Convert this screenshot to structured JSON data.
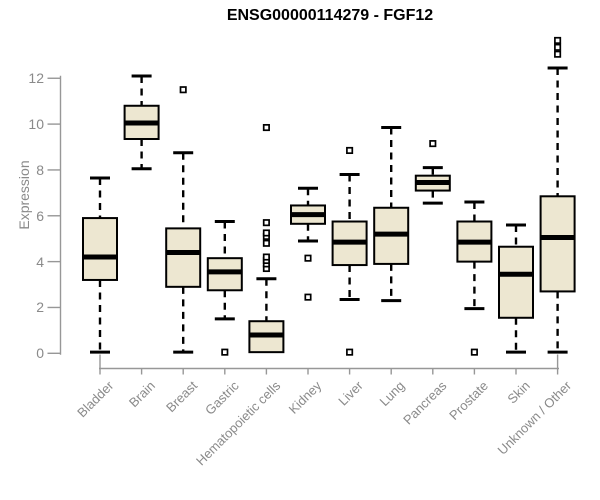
{
  "title": "ENSG00000114279 - FGF12",
  "chart_data": {
    "type": "boxplot",
    "title": "ENSG00000114279 - FGF12",
    "xlabel": "",
    "ylabel": "Expression",
    "ylim": [
      0,
      12
    ],
    "yticks": [
      0,
      2,
      4,
      6,
      8,
      10,
      12
    ],
    "grid": false,
    "legend": false,
    "categories": [
      "Bladder",
      "Brain",
      "Breast",
      "Gastric",
      "Hematopoietic cells",
      "Kidney",
      "Liver",
      "Lung",
      "Pancreas",
      "Prostate",
      "Skin",
      "Unknown / Other"
    ],
    "series": [
      {
        "name": "Bladder",
        "whisker_low": 0.05,
        "q1": 3.2,
        "median": 4.2,
        "q3": 5.9,
        "whisker_high": 7.65,
        "outliers": []
      },
      {
        "name": "Brain",
        "whisker_low": 8.05,
        "q1": 9.35,
        "median": 10.05,
        "q3": 10.8,
        "whisker_high": 12.1,
        "outliers": []
      },
      {
        "name": "Breast",
        "whisker_low": 0.05,
        "q1": 2.9,
        "median": 4.4,
        "q3": 5.45,
        "whisker_high": 8.75,
        "outliers": [
          11.5
        ]
      },
      {
        "name": "Gastric",
        "whisker_low": 1.5,
        "q1": 2.75,
        "median": 3.55,
        "q3": 4.15,
        "whisker_high": 5.75,
        "outliers": [
          0.05
        ]
      },
      {
        "name": "Hematopoietic cells",
        "whisker_low": 0.05,
        "q1": 0.05,
        "median": 0.8,
        "q3": 1.4,
        "whisker_high": 3.25,
        "outliers": [
          3.7,
          3.9,
          4.05,
          4.2,
          4.8,
          5.1,
          5.25,
          5.7,
          9.85
        ]
      },
      {
        "name": "Kidney",
        "whisker_low": 4.9,
        "q1": 5.65,
        "median": 6.05,
        "q3": 6.45,
        "whisker_high": 7.2,
        "outliers": [
          4.15,
          2.45
        ]
      },
      {
        "name": "Liver",
        "whisker_low": 2.35,
        "q1": 3.85,
        "median": 4.85,
        "q3": 5.75,
        "whisker_high": 7.8,
        "outliers": [
          8.85,
          0.05
        ]
      },
      {
        "name": "Lung",
        "whisker_low": 2.3,
        "q1": 3.9,
        "median": 5.2,
        "q3": 6.35,
        "whisker_high": 9.85,
        "outliers": []
      },
      {
        "name": "Pancreas",
        "whisker_low": 6.55,
        "q1": 7.1,
        "median": 7.45,
        "q3": 7.75,
        "whisker_high": 8.1,
        "outliers": [
          9.15
        ]
      },
      {
        "name": "Prostate",
        "whisker_low": 1.95,
        "q1": 4.0,
        "median": 4.85,
        "q3": 5.75,
        "whisker_high": 6.6,
        "outliers": [
          0.05
        ]
      },
      {
        "name": "Skin",
        "whisker_low": 0.05,
        "q1": 1.55,
        "median": 3.45,
        "q3": 4.65,
        "whisker_high": 5.6,
        "outliers": []
      },
      {
        "name": "Unknown / Other",
        "whisker_low": 0.05,
        "q1": 2.7,
        "median": 5.05,
        "q3": 6.85,
        "whisker_high": 12.45,
        "outliers": [
          13.05,
          13.35,
          13.65
        ]
      }
    ]
  },
  "style": {
    "background": "#ffffff",
    "box_fill": "#ede7d1",
    "box_border": "#000000",
    "median_color": "#000000",
    "whisker_color": "#000000",
    "outlier_color": "#000000",
    "axis_color": "#979797",
    "tick_label_color": "#8a8a8a",
    "title_color": "#000000"
  }
}
